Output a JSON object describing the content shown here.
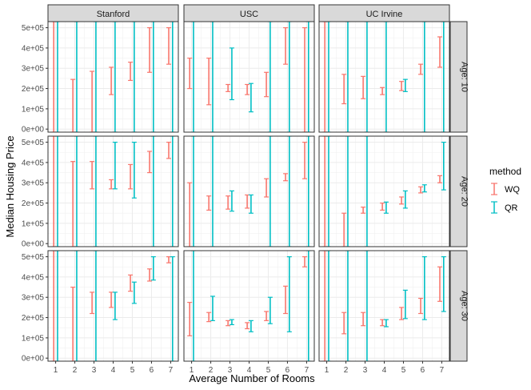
{
  "chart_data": {
    "type": "errorbar-facet",
    "xlabel": "Average Number of Rooms",
    "ylabel": "Median Housing Price",
    "x_ticks": [
      "1",
      "2",
      "3",
      "4",
      "5",
      "6",
      "7"
    ],
    "y_ticks": [
      "0e+00",
      "1e+05",
      "2e+05",
      "3e+05",
      "4e+05",
      "5e+05"
    ],
    "y_tick_values": [
      0,
      100000,
      200000,
      300000,
      400000,
      500000
    ],
    "ylim": [
      -15000,
      530000
    ],
    "xlim": [
      0.6,
      7.4
    ],
    "columns": [
      "Stanford",
      "USC",
      "UC Irvine"
    ],
    "rows": [
      "Age: 10",
      "Age: 20",
      "Age: 30"
    ],
    "legend": {
      "title": "method",
      "items": [
        {
          "label": "WQ",
          "color": "#F8766D"
        },
        {
          "label": "QR",
          "color": "#00BFC4"
        }
      ]
    },
    "series": [
      {
        "name": "WQ",
        "color": "#F8766D",
        "x_offset": -0.1,
        "panels": [
          [
            [
              [
                1,
                -15000,
                530000
              ],
              [
                2,
                -15000,
                245000
              ],
              [
                3,
                -15000,
                285000
              ],
              [
                4,
                170000,
                305000
              ],
              [
                5,
                240000,
                330000
              ],
              [
                6,
                280000,
                500000
              ],
              [
                7,
                320000,
                500000
              ]
            ],
            [
              [
                1,
                200000,
                350000
              ],
              [
                2,
                120000,
                350000
              ],
              [
                3,
                185000,
                220000
              ],
              [
                4,
                170000,
                220000
              ],
              [
                5,
                160000,
                280000
              ],
              [
                6,
                320000,
                500000
              ],
              [
                7,
                -15000,
                500000
              ]
            ],
            [
              [
                1,
                -15000,
                530000
              ],
              [
                2,
                125000,
                270000
              ],
              [
                3,
                150000,
                260000
              ],
              [
                4,
                170000,
                205000
              ],
              [
                5,
                190000,
                235000
              ],
              [
                6,
                270000,
                320000
              ],
              [
                7,
                305000,
                455000
              ]
            ]
          ],
          [
            [
              [
                1,
                -15000,
                530000
              ],
              [
                2,
                -15000,
                405000
              ],
              [
                3,
                270000,
                405000
              ],
              [
                4,
                270000,
                315000
              ],
              [
                5,
                270000,
                390000
              ],
              [
                6,
                350000,
                455000
              ],
              [
                7,
                420000,
                500000
              ]
            ],
            [
              [
                1,
                -15000,
                300000
              ],
              [
                2,
                165000,
                235000
              ],
              [
                3,
                170000,
                235000
              ],
              [
                4,
                175000,
                240000
              ],
              [
                5,
                230000,
                320000
              ],
              [
                6,
                310000,
                345000
              ],
              [
                7,
                320000,
                500000
              ]
            ],
            [
              [
                1,
                -15000,
                530000
              ],
              [
                2,
                -15000,
                150000
              ],
              [
                3,
                150000,
                180000
              ],
              [
                4,
                165000,
                200000
              ],
              [
                5,
                195000,
                230000
              ],
              [
                6,
                250000,
                280000
              ],
              [
                7,
                300000,
                335000
              ]
            ]
          ],
          [
            [
              [
                1,
                -15000,
                530000
              ],
              [
                2,
                -15000,
                350000
              ],
              [
                3,
                220000,
                325000
              ],
              [
                4,
                250000,
                325000
              ],
              [
                5,
                330000,
                410000
              ],
              [
                6,
                380000,
                440000
              ],
              [
                7,
                470000,
                500000
              ]
            ],
            [
              [
                1,
                110000,
                275000
              ],
              [
                2,
                180000,
                225000
              ],
              [
                3,
                160000,
                185000
              ],
              [
                4,
                145000,
                175000
              ],
              [
                5,
                185000,
                230000
              ],
              [
                6,
                220000,
                355000
              ],
              [
                7,
                450000,
                500000
              ]
            ],
            [
              [
                1,
                -15000,
                530000
              ],
              [
                2,
                120000,
                225000
              ],
              [
                3,
                160000,
                225000
              ],
              [
                4,
                160000,
                190000
              ],
              [
                5,
                190000,
                250000
              ],
              [
                6,
                220000,
                295000
              ],
              [
                7,
                280000,
                450000
              ]
            ]
          ]
        ]
      },
      {
        "name": "QR",
        "color": "#00BFC4",
        "x_offset": 0.1,
        "panels": [
          [
            [
              [
                1,
                -15000,
                530000
              ],
              [
                2,
                -15000,
                530000
              ],
              [
                3,
                -15000,
                530000
              ],
              [
                4,
                -15000,
                530000
              ],
              [
                5,
                -15000,
                530000
              ],
              [
                6,
                -15000,
                530000
              ],
              [
                7,
                -15000,
                530000
              ]
            ],
            [
              [
                1,
                -15000,
                530000
              ],
              [
                2,
                -15000,
                530000
              ],
              [
                3,
                145000,
                400000
              ],
              [
                4,
                85000,
                225000
              ],
              [
                5,
                -15000,
                530000
              ],
              [
                6,
                -15000,
                530000
              ],
              [
                7,
                -15000,
                530000
              ]
            ],
            [
              [
                1,
                -15000,
                530000
              ],
              [
                2,
                -15000,
                530000
              ],
              [
                3,
                -15000,
                530000
              ],
              [
                4,
                -15000,
                530000
              ],
              [
                5,
                185000,
                245000
              ],
              [
                6,
                -15000,
                530000
              ],
              [
                7,
                -15000,
                530000
              ]
            ]
          ],
          [
            [
              [
                1,
                -15000,
                530000
              ],
              [
                2,
                -15000,
                530000
              ],
              [
                3,
                -15000,
                530000
              ],
              [
                4,
                270000,
                500000
              ],
              [
                5,
                225000,
                500000
              ],
              [
                6,
                -15000,
                530000
              ],
              [
                7,
                -15000,
                530000
              ]
            ],
            [
              [
                1,
                -15000,
                530000
              ],
              [
                2,
                -15000,
                530000
              ],
              [
                3,
                160000,
                260000
              ],
              [
                4,
                150000,
                240000
              ],
              [
                5,
                -15000,
                530000
              ],
              [
                6,
                -15000,
                530000
              ],
              [
                7,
                -15000,
                530000
              ]
            ],
            [
              [
                1,
                -15000,
                530000
              ],
              [
                2,
                -15000,
                530000
              ],
              [
                3,
                -15000,
                530000
              ],
              [
                4,
                150000,
                205000
              ],
              [
                5,
                175000,
                260000
              ],
              [
                6,
                255000,
                290000
              ],
              [
                7,
                265000,
                500000
              ]
            ]
          ],
          [
            [
              [
                1,
                -15000,
                530000
              ],
              [
                2,
                -15000,
                530000
              ],
              [
                3,
                -15000,
                530000
              ],
              [
                4,
                190000,
                325000
              ],
              [
                5,
                270000,
                375000
              ],
              [
                6,
                385000,
                500000
              ],
              [
                7,
                -15000,
                500000
              ]
            ],
            [
              [
                1,
                -15000,
                530000
              ],
              [
                2,
                185000,
                305000
              ],
              [
                3,
                165000,
                190000
              ],
              [
                4,
                130000,
                185000
              ],
              [
                5,
                170000,
                300000
              ],
              [
                6,
                130000,
                500000
              ],
              [
                7,
                -15000,
                530000
              ]
            ],
            [
              [
                1,
                -15000,
                530000
              ],
              [
                2,
                -15000,
                530000
              ],
              [
                3,
                -15000,
                530000
              ],
              [
                4,
                155000,
                190000
              ],
              [
                5,
                195000,
                335000
              ],
              [
                6,
                190000,
                500000
              ],
              [
                7,
                230000,
                500000
              ]
            ]
          ]
        ]
      }
    ]
  }
}
